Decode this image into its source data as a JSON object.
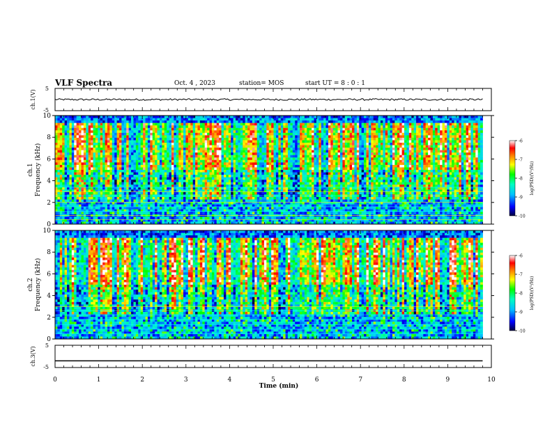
{
  "header": {
    "title": "VLF Spectra",
    "date": "Oct. 4 , 2023",
    "station": "station= MOS",
    "start": "start UT = 8 : 0 : 1"
  },
  "chart_data": [
    {
      "type": "line",
      "panel": "ch1-waveform",
      "ylabel": "ch.1(V)",
      "ylim": [
        -5,
        5
      ],
      "yticks": [
        "5",
        "-5"
      ],
      "baseline": 0,
      "note_level": "near 0 V with small noise"
    },
    {
      "type": "heatmap",
      "panel": "ch1-spectrogram",
      "ylabel": "ch.1 Frequency (kHz)",
      "ylabel_top": "ch.1",
      "ylabel_main": "Frequency (kHz)",
      "ylim": [
        0,
        10
      ],
      "yticks": [
        "0",
        "2",
        "4",
        "6",
        "8",
        "10"
      ],
      "xlim": [
        0,
        10
      ],
      "colorbar": {
        "label": "log(PSD)(V²/Hz)",
        "range": [
          -10,
          -6
        ],
        "ticks": [
          "-6",
          "-7",
          "-8",
          "-9",
          "-10"
        ],
        "colors": [
          "#000080",
          "#0000ff",
          "#00a0ff",
          "#00ffff",
          "#00ff80",
          "#00ff00",
          "#ffff00",
          "#ff8000",
          "#ff0000",
          "#ffffff"
        ]
      }
    },
    {
      "type": "heatmap",
      "panel": "ch2-spectrogram",
      "ylabel": "ch.2 Frequency (kHz)",
      "ylabel_top": "ch.2",
      "ylabel_main": "Frequency (kHz)",
      "ylim": [
        0,
        10
      ],
      "yticks": [
        "0",
        "2",
        "4",
        "6",
        "8",
        "10"
      ],
      "xlim": [
        0,
        10
      ],
      "colorbar": {
        "label": "log(PSD)(V²/Hz)",
        "range": [
          -10,
          -6
        ],
        "ticks": [
          "-6",
          "-7",
          "-8",
          "-9",
          "-10"
        ]
      }
    },
    {
      "type": "line",
      "panel": "ch3-waveform",
      "ylabel": "ch.3(V)",
      "ylim": [
        -5,
        5
      ],
      "yticks": [
        "5",
        "-5"
      ],
      "baseline": -2,
      "xlabel": "Time (min)",
      "xlim": [
        0,
        10
      ],
      "xticks": [
        "0",
        "1",
        "2",
        "3",
        "4",
        "5",
        "6",
        "7",
        "8",
        "9",
        "10"
      ],
      "data_end_min": 9.8
    }
  ]
}
